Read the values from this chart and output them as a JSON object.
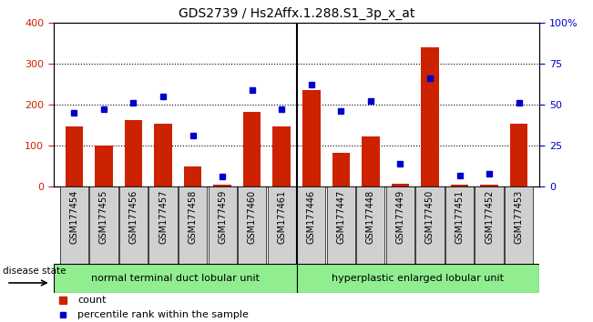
{
  "title": "GDS2739 / Hs2Affx.1.288.S1_3p_x_at",
  "samples": [
    "GSM177454",
    "GSM177455",
    "GSM177456",
    "GSM177457",
    "GSM177458",
    "GSM177459",
    "GSM177460",
    "GSM177461",
    "GSM177446",
    "GSM177447",
    "GSM177448",
    "GSM177449",
    "GSM177450",
    "GSM177451",
    "GSM177452",
    "GSM177453"
  ],
  "counts": [
    148,
    101,
    163,
    153,
    49,
    5,
    183,
    148,
    236,
    82,
    123,
    8,
    340,
    5,
    6,
    153
  ],
  "percentiles": [
    45,
    47,
    51,
    55,
    31,
    6,
    59,
    47,
    62,
    46,
    52,
    14,
    66,
    7,
    8,
    51
  ],
  "group1_label": "normal terminal duct lobular unit",
  "group2_label": "hyperplastic enlarged lobular unit",
  "group1_count": 8,
  "group2_count": 8,
  "bar_color": "#cc2200",
  "dot_color": "#0000cc",
  "ylim_left": [
    0,
    400
  ],
  "ylim_right": [
    0,
    100
  ],
  "yticks_left": [
    0,
    100,
    200,
    300,
    400
  ],
  "yticks_right": [
    0,
    25,
    50,
    75,
    100
  ],
  "ytick_labels_right": [
    "0",
    "25",
    "50",
    "75",
    "100%"
  ],
  "plot_bg": "#ffffff",
  "group_bg": "#90ee90",
  "xtick_bg": "#d0d0d0",
  "legend_count_label": "count",
  "legend_pct_label": "percentile rank within the sample",
  "disease_state_label": "disease state"
}
